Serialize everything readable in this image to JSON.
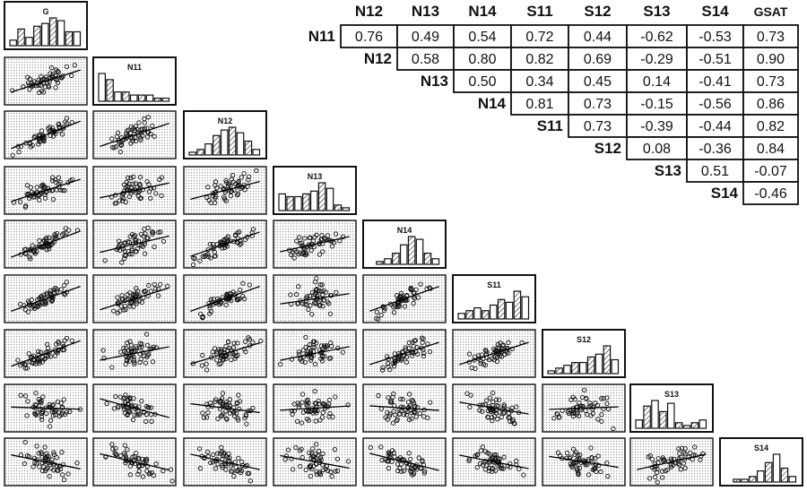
{
  "chart_data": {
    "type": "scatter",
    "title": "",
    "variables": [
      "G",
      "N11",
      "N12",
      "N13",
      "N14",
      "S11",
      "S12",
      "S13",
      "S14"
    ],
    "histogram_heights": {
      "G": [
        2,
        6,
        3,
        7,
        8,
        10,
        9,
        5,
        5
      ],
      "N11": [
        9,
        7,
        3,
        3,
        2,
        2,
        2,
        1,
        1
      ],
      "N12": [
        1,
        2,
        4,
        7,
        9,
        10,
        8,
        5,
        2
      ],
      "N13": [
        6,
        5,
        5,
        6,
        7,
        10,
        8,
        2,
        1
      ],
      "N14": [
        0,
        1,
        2,
        4,
        7,
        10,
        9,
        4,
        2
      ],
      "S11": [
        2,
        3,
        4,
        3,
        5,
        7,
        6,
        10,
        8
      ],
      "S12": [
        1,
        2,
        3,
        4,
        4,
        6,
        7,
        10,
        5
      ],
      "S13": [
        3,
        8,
        10,
        6,
        9,
        2,
        1,
        2,
        3
      ],
      "S14": [
        0,
        1,
        1,
        2,
        4,
        7,
        10,
        5,
        2
      ]
    },
    "correlation_table": {
      "column_headers": [
        "N12",
        "N13",
        "N14",
        "S11",
        "S12",
        "S13",
        "S14",
        "GSAT"
      ],
      "rows": [
        {
          "label": "N11",
          "values": [
            "0.76",
            "0.49",
            "0.54",
            "0.72",
            "0.44",
            "-0.62",
            "-0.53",
            "0.73"
          ]
        },
        {
          "label": "N12",
          "values": [
            "0.58",
            "0.80",
            "0.82",
            "0.69",
            "-0.29",
            "-0.51",
            "0.90"
          ]
        },
        {
          "label": "N13",
          "values": [
            "0.50",
            "0.34",
            "0.45",
            "0.14",
            "-0.41",
            "0.73"
          ]
        },
        {
          "label": "N14",
          "values": [
            "0.81",
            "0.73",
            "-0.15",
            "-0.56",
            "0.86"
          ]
        },
        {
          "label": "S11",
          "values": [
            "0.73",
            "-0.39",
            "-0.44",
            "0.82"
          ]
        },
        {
          "label": "S12",
          "values": [
            "0.08",
            "-0.36",
            "0.84"
          ]
        },
        {
          "label": "S13",
          "values": [
            "0.51",
            "-0.07"
          ]
        },
        {
          "label": "S14",
          "values": [
            "-0.46"
          ]
        }
      ]
    },
    "grid": true,
    "legend": "none"
  }
}
